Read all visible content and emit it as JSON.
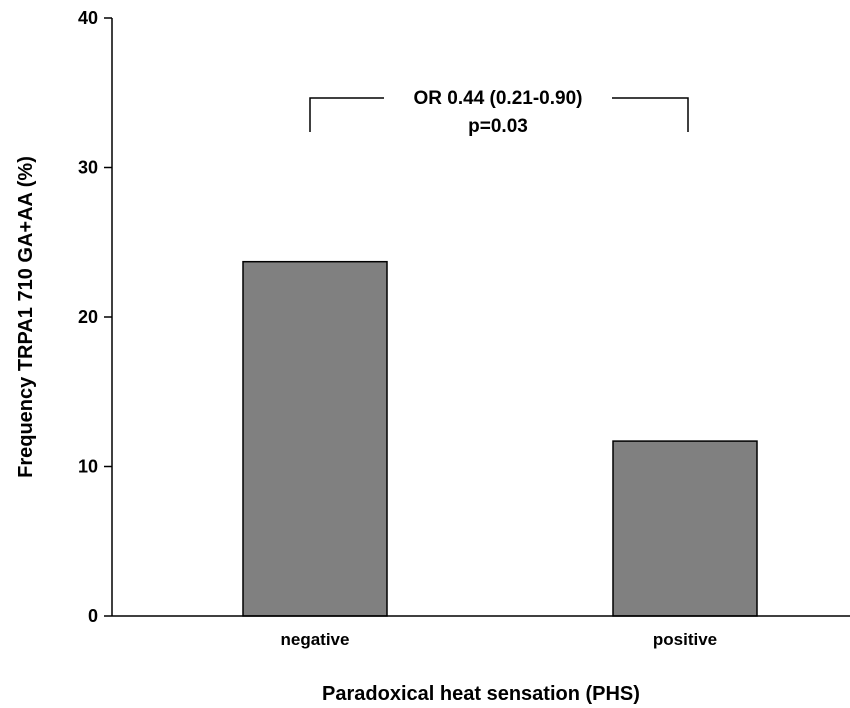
{
  "chart_data": {
    "type": "bar",
    "categories": [
      "negative",
      "positive"
    ],
    "values": [
      23.7,
      11.7
    ],
    "xlabel": "Paradoxical heat sensation (PHS)",
    "ylabel": "Frequency TRPA1 710 GA+AA (%)",
    "ylim": [
      0,
      40
    ],
    "yticks": [
      0,
      10,
      20,
      30,
      40
    ],
    "grid": false,
    "bar_color": "#808080",
    "annotation": {
      "line1": "OR 0.44 (0.21-0.90)",
      "line2": "p=0.03"
    }
  }
}
